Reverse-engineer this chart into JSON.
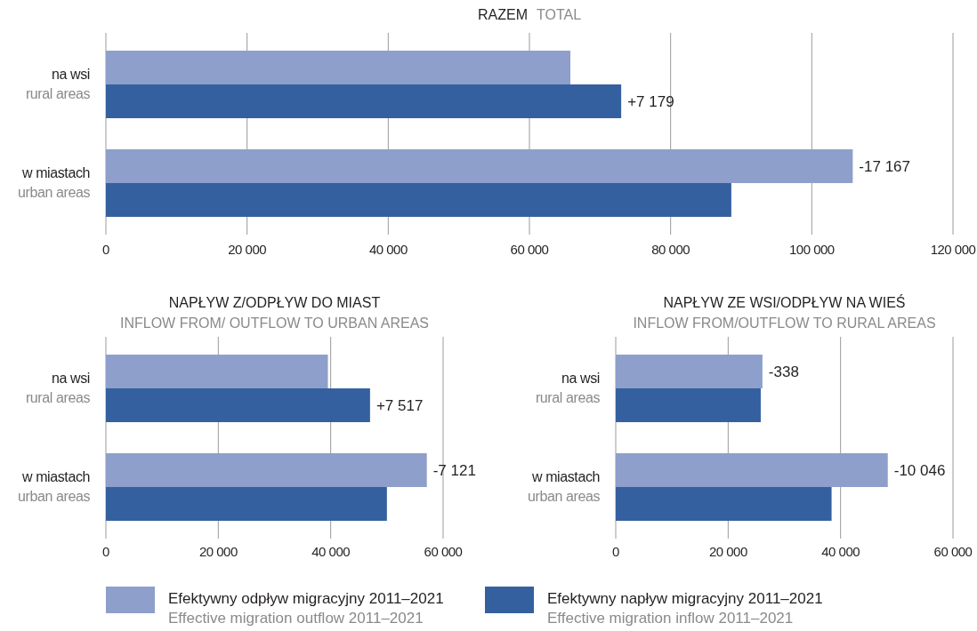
{
  "chart_data": [
    {
      "type": "bar",
      "orientation": "horizontal",
      "title": "RAZEM",
      "subtitle": "TOTAL",
      "categories": [
        "na wsi\nrural areas",
        "w miastach\nurban areas"
      ],
      "series": [
        {
          "name": "Efektywny odpływ migracyjny 2011–2021\nEffective migration outflow 2011–2021",
          "color": "#8d9fca",
          "values": [
            65800,
            105800
          ]
        },
        {
          "name": "Efektywny napływ migracyjny 2011–2021\nEffective migration inflow 2011–2021",
          "color": "#3560a0",
          "values": [
            73000,
            88600
          ]
        }
      ],
      "xlim": [
        0,
        120000
      ],
      "xticks": [
        {
          "value": 0,
          "label": "0"
        },
        {
          "value": 20000,
          "label": "20 000"
        },
        {
          "value": 40000,
          "label": "40 000"
        },
        {
          "value": 60000,
          "label": "60 000"
        },
        {
          "value": 80000,
          "label": "80 000"
        },
        {
          "value": 100000,
          "label": "100 000"
        },
        {
          "value": 120000,
          "label": "120 000"
        }
      ],
      "grid": "x",
      "legend": "bottom",
      "annotations": [
        {
          "text": "+7 179",
          "x": 73000,
          "y": "na wsi\nrural areas"
        },
        {
          "text": "-17 167",
          "x": 105800,
          "y": "w miastach\nurban areas"
        }
      ]
    },
    {
      "type": "bar",
      "orientation": "horizontal",
      "title": "NAPŁYW Z/ODPŁYW DO MIAST",
      "subtitle": "INFLOW FROM/ OUTFLOW TO URBAN AREAS",
      "categories": [
        "na wsi\nrural areas",
        "w miastach\nurban areas"
      ],
      "series": [
        {
          "color": "#8d9fca",
          "values": [
            39500,
            57100
          ]
        },
        {
          "color": "#3560a0",
          "values": [
            47000,
            50000
          ]
        }
      ],
      "xlim": [
        0,
        60000
      ],
      "xticks": [
        0,
        {
          "value": 20000,
          "label": "20 000"
        },
        {
          "value": 40000,
          "label": "40 000"
        },
        {
          "value": 60000,
          "label": "60 000"
        }
      ],
      "grid": "x",
      "annotations": [
        {
          "text": "+7 517",
          "x": 47000,
          "y": "na wsi\nrural areas"
        },
        {
          "text": "-7 121",
          "x": 57100,
          "y": "w miastach\nurban areas"
        }
      ]
    },
    {
      "type": "bar",
      "orientation": "horizontal",
      "title": "NAPŁYW ZE WSI/ODPŁYW NA WIEŚ",
      "subtitle": "INFLOW FROM/OUTFLOW TO RURAL AREAS",
      "categories": [
        "na wsi\nrural areas",
        "w miastach\nurban areas"
      ],
      "series": [
        {
          "color": "#8d9fca",
          "values": [
            26100,
            48400
          ]
        },
        {
          "color": "#3560a0",
          "values": [
            25800,
            38400
          ]
        }
      ],
      "xlim": [
        0,
        60000
      ],
      "xticks": [
        0,
        {
          "value": 20000,
          "label": "20 000"
        },
        {
          "value": 40000,
          "label": "40 000"
        },
        {
          "value": 60000,
          "label": "60 000"
        }
      ],
      "grid": "x",
      "annotations": [
        {
          "text": "-338",
          "x": 26100,
          "y": "na wsi\nrural areas"
        },
        {
          "text": "-10 046",
          "x": 48400,
          "y": "w miastach\nurban areas"
        }
      ]
    }
  ]
}
